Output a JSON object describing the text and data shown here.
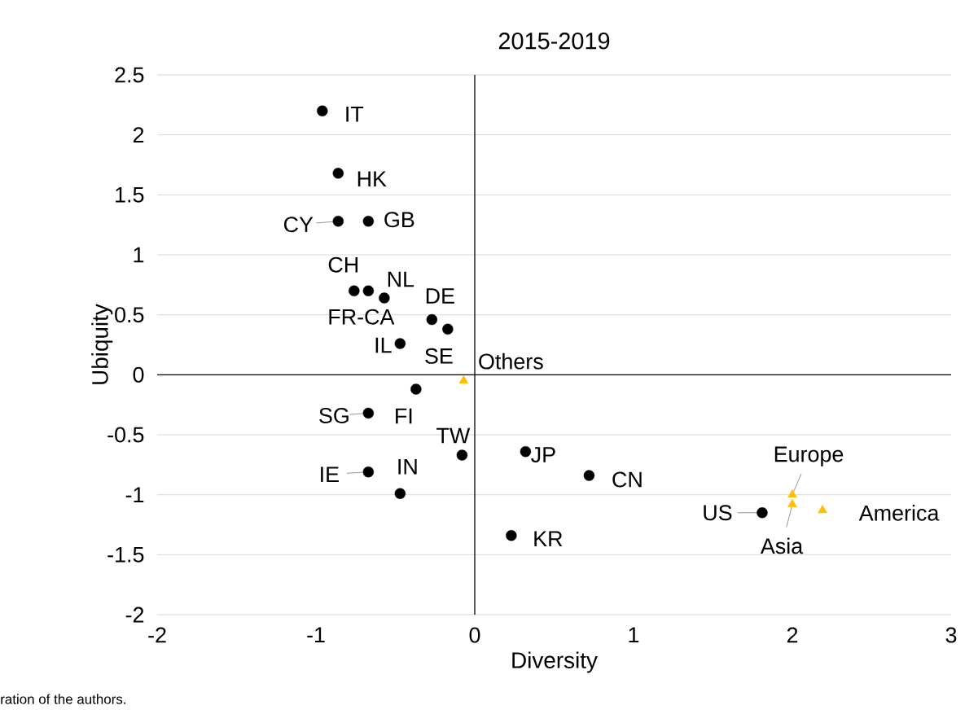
{
  "chart_data": {
    "type": "scatter",
    "title": "2015-2019",
    "xlabel": "Diversity",
    "ylabel": "Ubiquity",
    "xlim": [
      -2,
      3
    ],
    "xticks": [
      -2,
      -1,
      0,
      1,
      2,
      3
    ],
    "ylim": [
      -2,
      2.5
    ],
    "yticks": [
      -2,
      -1.5,
      -1,
      -0.5,
      0,
      0.5,
      1,
      1.5,
      2,
      2.5
    ],
    "grid": "y",
    "legend": false,
    "ref_lines": [
      {
        "axis": "x",
        "value": 0,
        "color": "#000000"
      }
    ],
    "series": [
      {
        "color": "#000000",
        "marker": "circle",
        "x": [
          -0.96,
          -0.86,
          -0.86,
          -0.67,
          -0.76,
          -0.67,
          -0.57,
          -0.27,
          -0.17,
          -0.47,
          -0.37,
          -0.67,
          -0.08,
          0.32,
          0.72,
          -0.67,
          -0.47,
          0.23,
          1.81
        ],
        "values": [
          2.2,
          1.68,
          1.28,
          1.28,
          0.7,
          0.7,
          0.64,
          0.46,
          0.38,
          0.26,
          -0.12,
          -0.32,
          -0.67,
          -0.64,
          -0.84,
          -0.81,
          -0.99,
          -1.34,
          -1.15
        ]
      },
      {
        "color": "#ffc000",
        "marker": "triangle",
        "x": [
          -0.07,
          2.0,
          2.0,
          2.19
        ],
        "values": [
          -0.05,
          -1.0,
          -1.08,
          -1.13
        ]
      }
    ],
    "annotations": [
      {
        "text": "IT",
        "x": -0.96,
        "y": 2.2
      },
      {
        "text": "HK",
        "x": -0.86,
        "y": 1.68
      },
      {
        "text": "CY",
        "x": -0.86,
        "y": 1.28
      },
      {
        "text": "GB",
        "x": -0.67,
        "y": 1.28
      },
      {
        "text": "CH",
        "x": -0.76,
        "y": 0.7
      },
      {
        "text": "NL",
        "x": -0.57,
        "y": 0.64
      },
      {
        "text": "DE",
        "x": -0.27,
        "y": 0.46
      },
      {
        "text": "FR-CA",
        "x": -0.67,
        "y": 0.7
      },
      {
        "text": "IL",
        "x": -0.47,
        "y": 0.26
      },
      {
        "text": "SE",
        "x": -0.17,
        "y": 0.38
      },
      {
        "text": "Others",
        "x": -0.07,
        "y": -0.05
      },
      {
        "text": "SG",
        "x": -0.67,
        "y": -0.32
      },
      {
        "text": "FI",
        "x": -0.37,
        "y": -0.12
      },
      {
        "text": "TW",
        "x": -0.08,
        "y": -0.67
      },
      {
        "text": "JP",
        "x": 0.32,
        "y": -0.64
      },
      {
        "text": "CN",
        "x": 0.72,
        "y": -0.84
      },
      {
        "text": "IE",
        "x": -0.67,
        "y": -0.81
      },
      {
        "text": "IN",
        "x": -0.47,
        "y": -0.99
      },
      {
        "text": "KR",
        "x": 0.23,
        "y": -1.34
      },
      {
        "text": "US",
        "x": 1.81,
        "y": -1.15
      },
      {
        "text": "Europe",
        "x": 2.0,
        "y": -1.0
      },
      {
        "text": "Asia",
        "x": 2.0,
        "y": -1.08
      },
      {
        "text": "America",
        "x": 2.19,
        "y": -1.13
      },
      "ration of the authors."
    ]
  }
}
